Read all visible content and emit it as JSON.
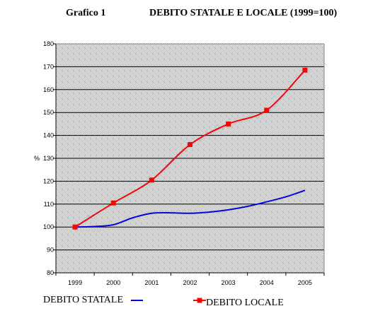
{
  "figure_label": "Grafico 1",
  "chart_data": {
    "type": "line",
    "title": "DEBITO STATALE E LOCALE (1999=100)",
    "ylabel": "%",
    "xlabel": "",
    "categories": [
      "1999",
      "2000",
      "2001",
      "2002",
      "2003",
      "2004",
      "2005"
    ],
    "ylim": [
      80,
      180
    ],
    "yticks": [
      80,
      90,
      100,
      110,
      120,
      130,
      140,
      150,
      160,
      170,
      180
    ],
    "grid": true,
    "series": [
      {
        "name": "DEBITO STATALE",
        "color": "#0000e6",
        "marker": "none",
        "x": [
          1999,
          1999.5,
          2000,
          2000.5,
          2001,
          2001.5,
          2002,
          2002.5,
          2003,
          2003.5,
          2004,
          2004.5,
          2005
        ],
        "values": [
          100,
          100.2,
          101,
          104,
          106,
          106.2,
          106,
          106.5,
          107.5,
          109,
          111,
          113.2,
          116
        ]
      },
      {
        "name": "DEBITO LOCALE",
        "color": "#ff0000",
        "marker": "square",
        "x": [
          1999,
          2000,
          2001,
          2002,
          2003,
          2004,
          2005
        ],
        "values": [
          100,
          110.5,
          120.5,
          136,
          145,
          151,
          168.5
        ]
      }
    ],
    "colors": {
      "plot_background": "#c0c0c0",
      "grid": "#000000"
    }
  }
}
